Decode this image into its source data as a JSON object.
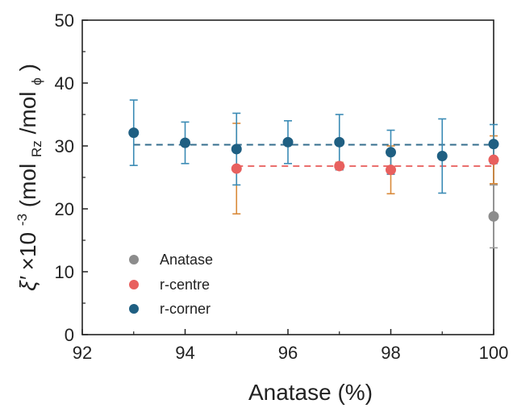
{
  "chart_data": {
    "type": "scatter",
    "x_label": "Anatase (%)",
    "y_label": {
      "symbol": "ξ′",
      "times": "×10",
      "exp": "-3",
      "unit_open": " (mol",
      "unit_sub1": "Rz",
      "unit_mid": " /mol",
      "unit_sub2": "ϕ",
      "unit_close": ")"
    },
    "xlim": [
      92,
      100
    ],
    "ylim": [
      0,
      50
    ],
    "x_ticks": [
      "92",
      "94",
      "96",
      "98",
      "100"
    ],
    "y_ticks": [
      "0",
      "10",
      "20",
      "30",
      "40",
      "50"
    ],
    "grid": false,
    "legend_position": "bottom-left",
    "colors": {
      "anatase": "#8c8c8c",
      "r_centre": "#e8605e",
      "r_centre_err": "#d98a3a",
      "r_corner": "#1f5f82",
      "r_corner_err": "#3b8bb5",
      "axis": "#222222"
    },
    "series": [
      {
        "name": "Anatase",
        "color": "#8c8c8c",
        "err_color": "#9a9a9a",
        "points": [
          {
            "x": 100,
            "y": 18.8,
            "err_low": 13.8,
            "err_high": 23.8
          }
        ]
      },
      {
        "name": "r-centre",
        "color": "#e8605e",
        "err_color": "#d98a3a",
        "fit_line": {
          "y": 26.8,
          "x_start": 95,
          "x_end": 100
        },
        "points": [
          {
            "x": 95,
            "y": 26.4,
            "err_low": 19.2,
            "err_high": 33.6
          },
          {
            "x": 97,
            "y": 26.8,
            "err_low": 26.2,
            "err_high": 27.4
          },
          {
            "x": 98,
            "y": 26.2,
            "err_low": 22.4,
            "err_high": 30.0
          },
          {
            "x": 100,
            "y": 27.8,
            "err_low": 24.0,
            "err_high": 31.6
          }
        ]
      },
      {
        "name": "r-corner",
        "color": "#1f5f82",
        "err_color": "#3b8bb5",
        "fit_line": {
          "y": 30.2,
          "x_start": 93,
          "x_end": 100
        },
        "points": [
          {
            "x": 93,
            "y": 32.1,
            "err_low": 26.9,
            "err_high": 37.3
          },
          {
            "x": 94,
            "y": 30.5,
            "err_low": 27.2,
            "err_high": 33.8
          },
          {
            "x": 95,
            "y": 29.5,
            "err_low": 23.8,
            "err_high": 35.2
          },
          {
            "x": 96,
            "y": 30.6,
            "err_low": 27.2,
            "err_high": 34.0
          },
          {
            "x": 97,
            "y": 30.6,
            "err_low": 26.2,
            "err_high": 35.0
          },
          {
            "x": 98,
            "y": 29.0,
            "err_low": 25.5,
            "err_high": 32.5
          },
          {
            "x": 99,
            "y": 28.4,
            "err_low": 22.5,
            "err_high": 34.3
          },
          {
            "x": 100,
            "y": 30.3,
            "err_low": 27.2,
            "err_high": 33.4
          }
        ]
      }
    ]
  }
}
